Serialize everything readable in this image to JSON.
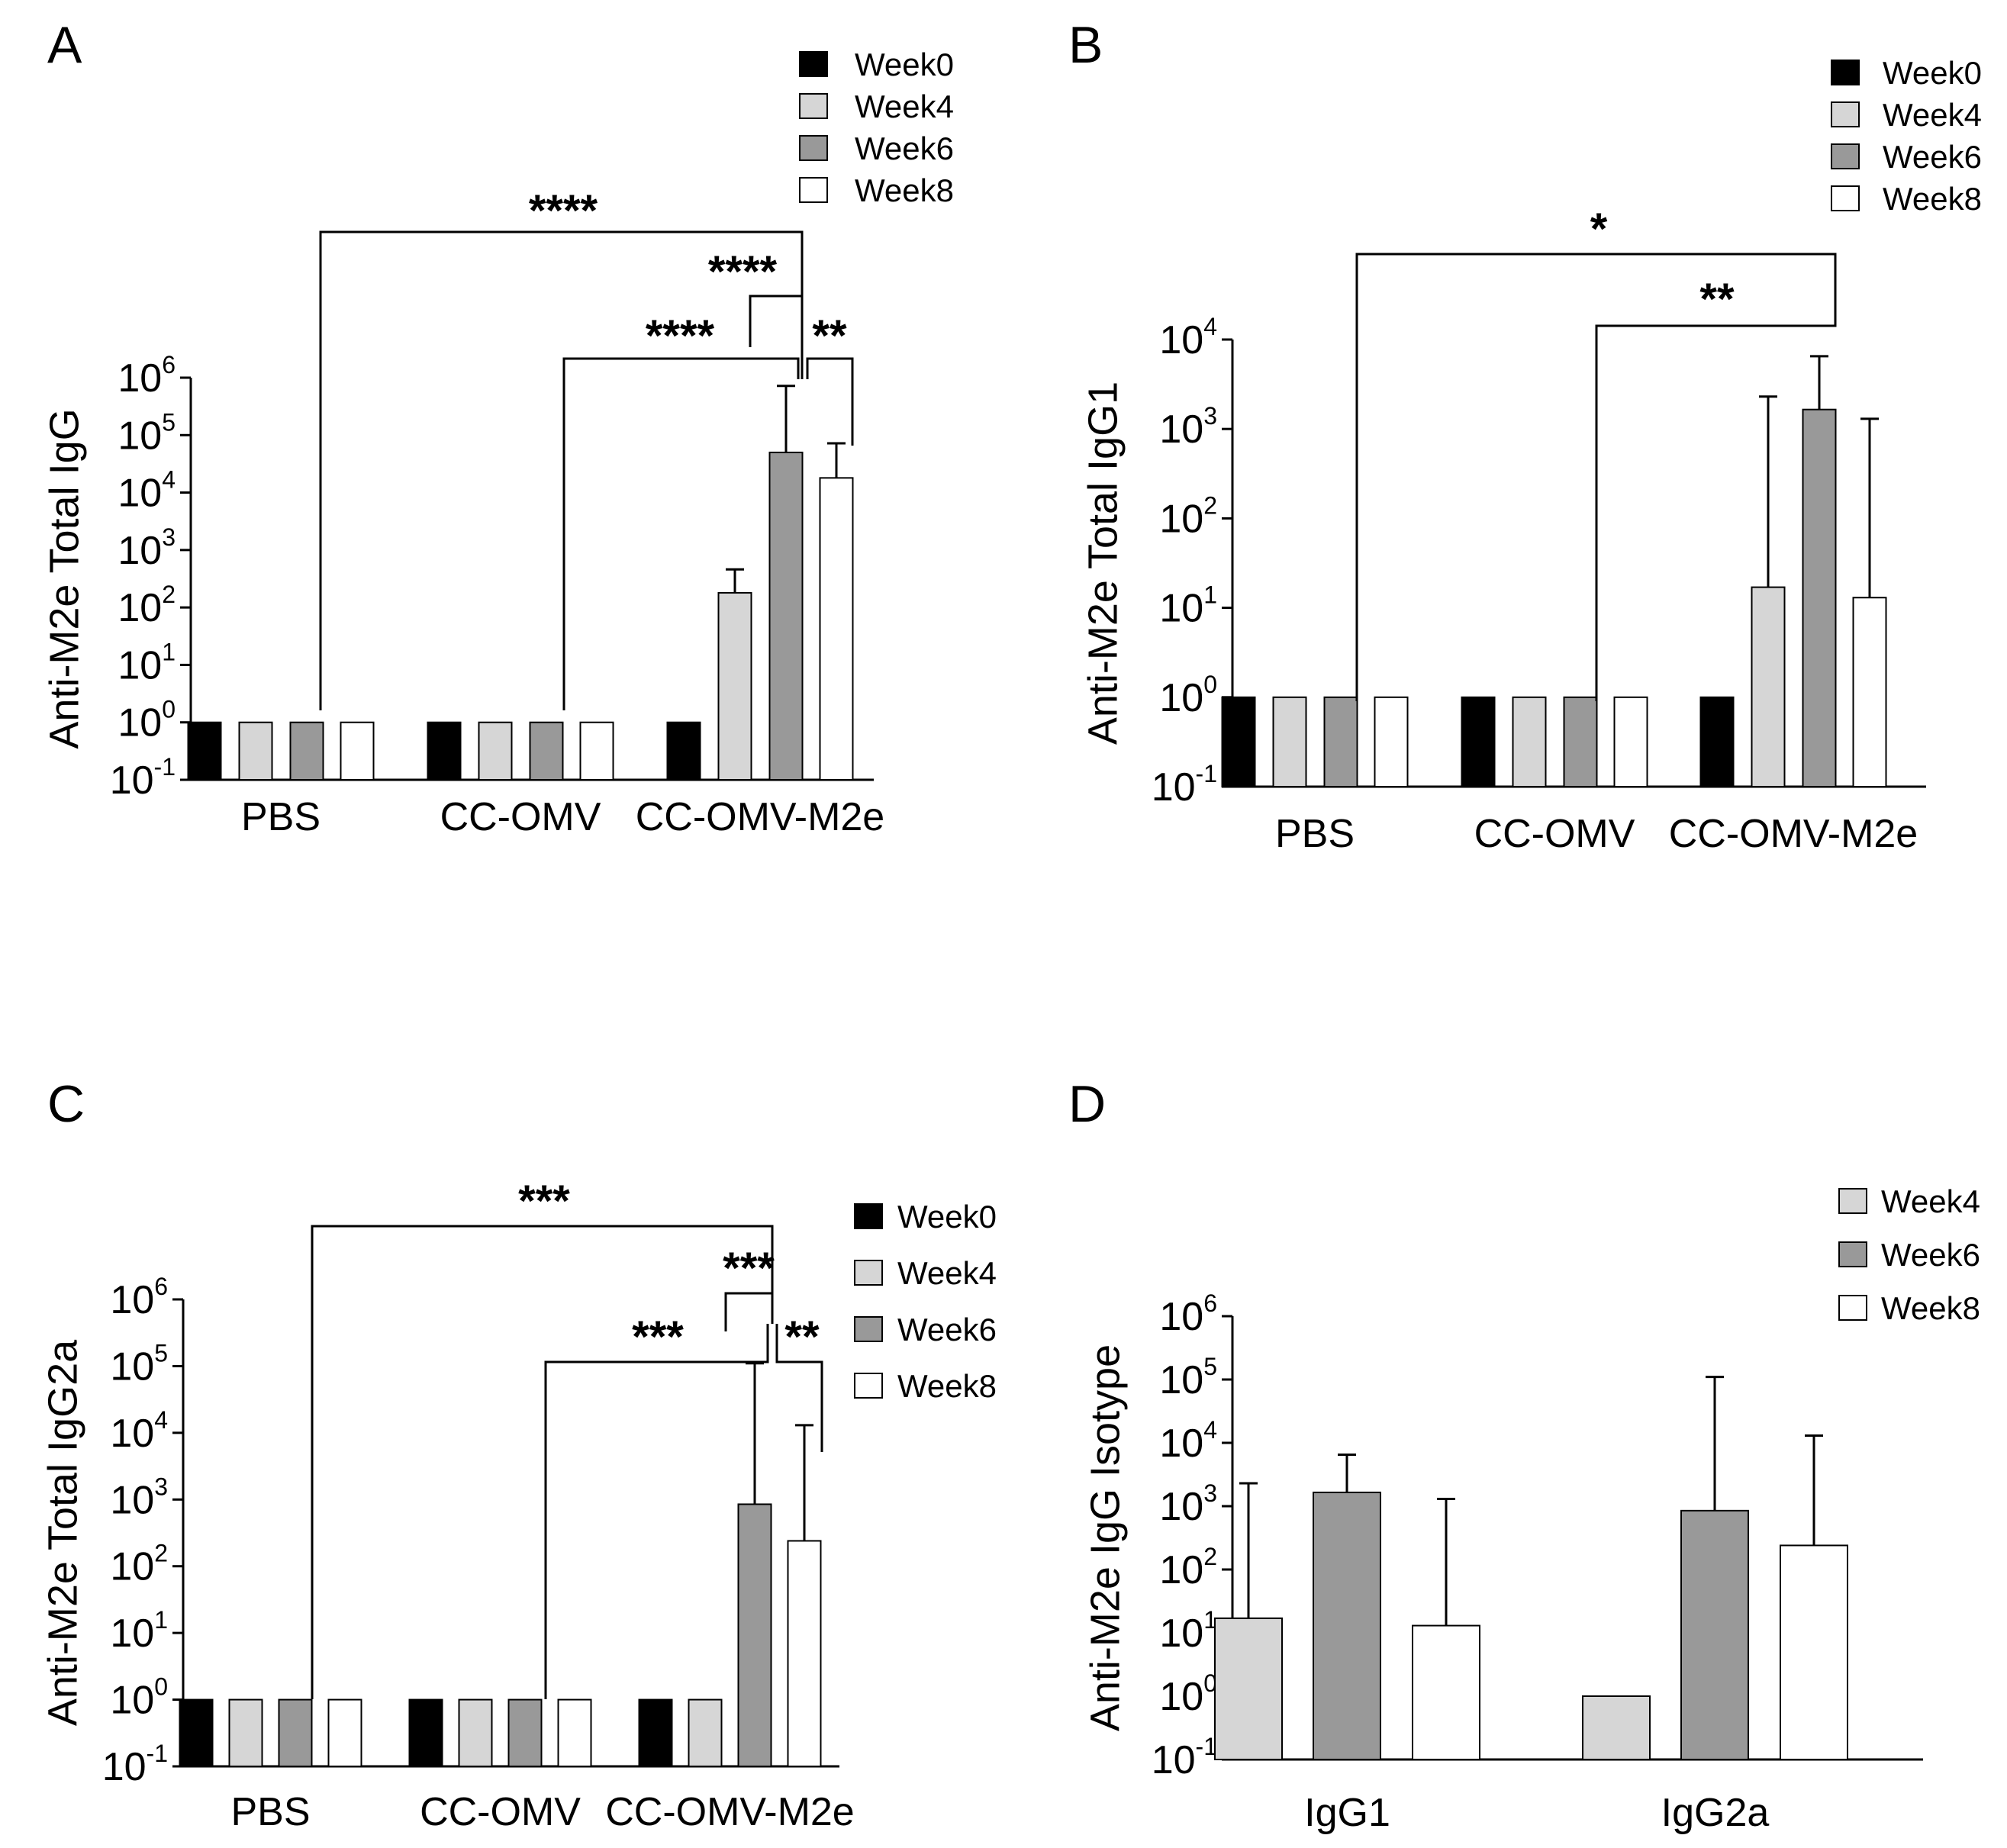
{
  "colors": {
    "Week0": "#000000",
    "Week4": "#d6d6d6",
    "Week6": "#999999",
    "Week8": "#ffffff",
    "axis": "#000000"
  },
  "chart_data": [
    {
      "panel": "A",
      "type": "bar",
      "scale": "log10",
      "ylabel": "Anti-M2e Total IgG",
      "ylim_exponents": [
        -1,
        6
      ],
      "categories": [
        "PBS",
        "CC-OMV",
        "CC-OMV-M2e"
      ],
      "series": [
        {
          "name": "Week0",
          "values": [
            1,
            1,
            1
          ],
          "errors": [
            null,
            null,
            null
          ]
        },
        {
          "name": "Week4",
          "values": [
            1,
            1,
            180
          ],
          "errors": [
            null,
            null,
            460
          ]
        },
        {
          "name": "Week6",
          "values": [
            1,
            1,
            50000
          ],
          "errors": [
            null,
            null,
            720000
          ]
        },
        {
          "name": "Week8",
          "values": [
            1,
            1,
            18000
          ],
          "errors": [
            null,
            null,
            72000
          ]
        }
      ],
      "legend": [
        "Week0",
        "Week4",
        "Week6",
        "Week8"
      ],
      "significance": [
        {
          "label": "****",
          "from": "PBS / Week6",
          "to": "CC-OMV-M2e / Week6"
        },
        {
          "label": "****",
          "from": "CC-OMV-M2e / Week4",
          "to": "CC-OMV-M2e / Week6"
        },
        {
          "label": "****",
          "from": "CC-OMV / Week6",
          "to": "CC-OMV-M2e / Week6"
        },
        {
          "label": "**",
          "from": "CC-OMV-M2e / Week6",
          "to": "CC-OMV-M2e / Week8"
        }
      ]
    },
    {
      "panel": "B",
      "type": "bar",
      "scale": "log10",
      "ylabel": "Anti-M2e Total IgG1",
      "ylim_exponents": [
        -1,
        4
      ],
      "categories": [
        "PBS",
        "CC-OMV",
        "CC-OMV-M2e"
      ],
      "series": [
        {
          "name": "Week0",
          "values": [
            1,
            1,
            1
          ],
          "errors": [
            null,
            null,
            null
          ]
        },
        {
          "name": "Week4",
          "values": [
            1,
            1,
            17
          ],
          "errors": [
            null,
            null,
            2300
          ]
        },
        {
          "name": "Week6",
          "values": [
            1,
            1,
            1650
          ],
          "errors": [
            null,
            null,
            6500
          ]
        },
        {
          "name": "Week8",
          "values": [
            1,
            1,
            13
          ],
          "errors": [
            null,
            null,
            1300
          ]
        }
      ],
      "legend": [
        "Week0",
        "Week4",
        "Week6",
        "Week8"
      ],
      "significance": [
        {
          "label": "*",
          "from": "PBS / Week6",
          "to": "CC-OMV-M2e / Week6"
        },
        {
          "label": "**",
          "from": "CC-OMV / Week6",
          "to": "CC-OMV-M2e / Week6"
        }
      ]
    },
    {
      "panel": "C",
      "type": "bar",
      "scale": "log10",
      "ylabel": "Anti-M2e Total IgG2a",
      "ylim_exponents": [
        -1,
        6
      ],
      "categories": [
        "PBS",
        "CC-OMV",
        "CC-OMV-M2e"
      ],
      "series": [
        {
          "name": "Week0",
          "values": [
            1,
            1,
            1
          ],
          "errors": [
            null,
            null,
            null
          ]
        },
        {
          "name": "Week4",
          "values": [
            1,
            1,
            1
          ],
          "errors": [
            null,
            null,
            null
          ]
        },
        {
          "name": "Week6",
          "values": [
            1,
            1,
            850
          ],
          "errors": [
            null,
            null,
            110000
          ]
        },
        {
          "name": "Week8",
          "values": [
            1,
            1,
            240
          ],
          "errors": [
            null,
            null,
            13000
          ]
        }
      ],
      "legend": [
        "Week0",
        "Week4",
        "Week6",
        "Week8"
      ],
      "significance": [
        {
          "label": "***",
          "from": "PBS / Week6",
          "to": "CC-OMV-M2e / Week6"
        },
        {
          "label": "***",
          "from": "CC-OMV-M2e / Week4",
          "to": "CC-OMV-M2e / Week6"
        },
        {
          "label": "***",
          "from": "CC-OMV / Week6",
          "to": "CC-OMV-M2e / Week6"
        },
        {
          "label": "**",
          "from": "CC-OMV-M2e / Week6",
          "to": "CC-OMV-M2e / Week8"
        }
      ]
    },
    {
      "panel": "D",
      "type": "bar",
      "scale": "log10",
      "ylabel": "Anti-M2e IgG Isotype",
      "ylim_exponents": [
        -1,
        6
      ],
      "categories": [
        "IgG1",
        "IgG2a"
      ],
      "series": [
        {
          "name": "Week4",
          "values": [
            17,
            1
          ],
          "errors": [
            2300,
            null
          ]
        },
        {
          "name": "Week6",
          "values": [
            1650,
            850
          ],
          "errors": [
            6500,
            110000
          ]
        },
        {
          "name": "Week8",
          "values": [
            13,
            240
          ],
          "errors": [
            1300,
            13000
          ]
        }
      ],
      "legend": [
        "Week4",
        "Week6",
        "Week8"
      ],
      "significance": []
    }
  ]
}
